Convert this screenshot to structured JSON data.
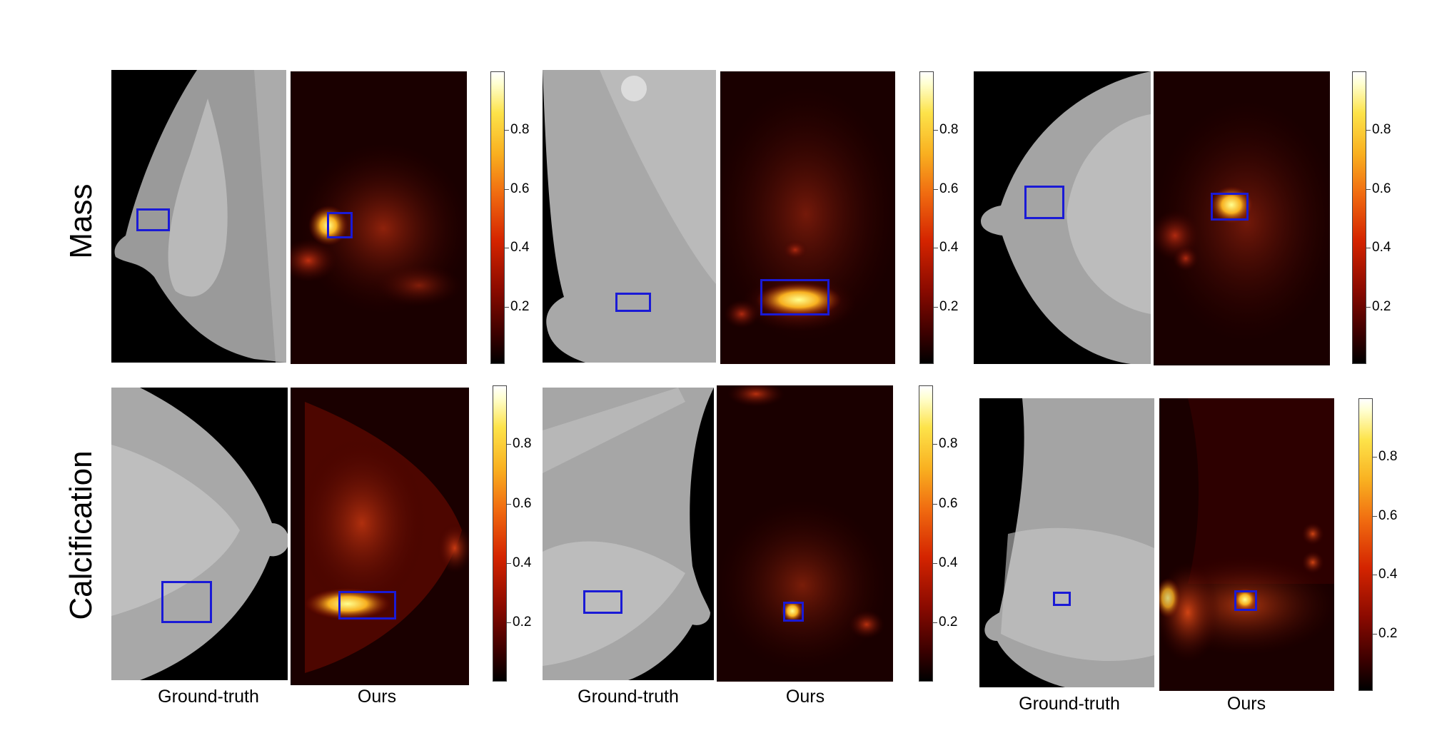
{
  "rows": [
    {
      "label": "Mass"
    },
    {
      "label": "Calcification"
    }
  ],
  "columns": {
    "ground_truth": "Ground-truth",
    "ours": "Ours"
  },
  "colorbar_ticks": [
    "0.8",
    "0.6",
    "0.4",
    "0.2"
  ],
  "colors": {
    "box": "#1a1ad6",
    "colormap": "hot"
  }
}
